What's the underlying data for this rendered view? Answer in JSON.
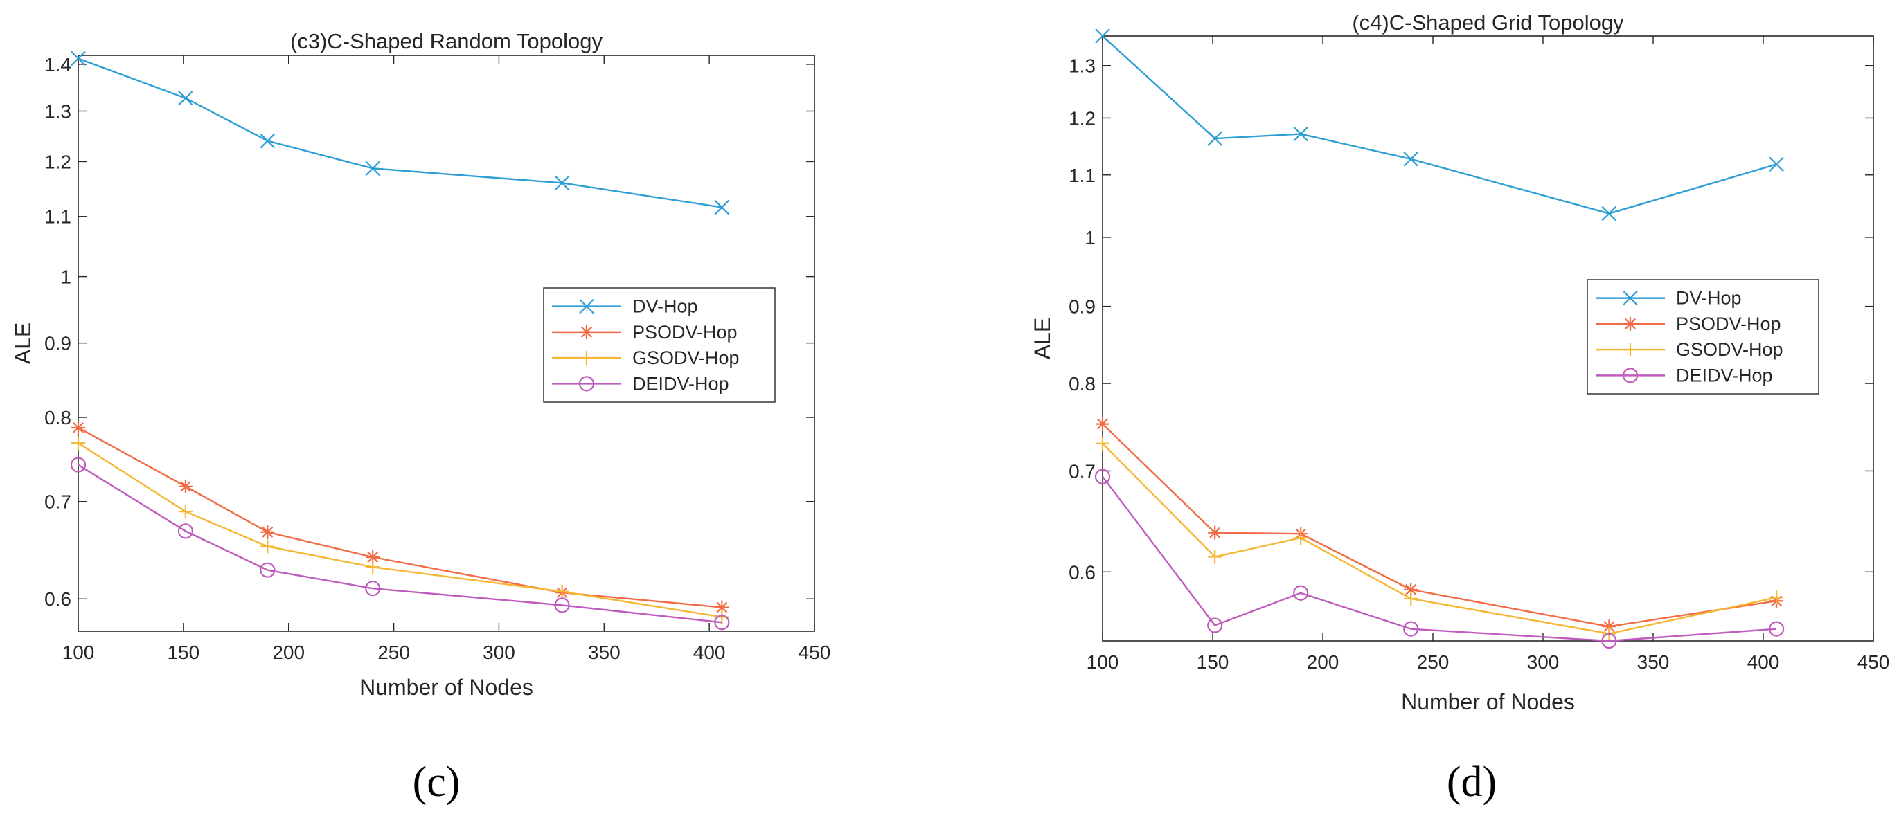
{
  "chart_data": [
    {
      "type": "line",
      "title": "(c3)C-Shaped Random Topology",
      "xlabel": "Number of Nodes",
      "ylabel": "ALE",
      "panel_label": "(c)",
      "y_scale": "log",
      "xlim": [
        100,
        450
      ],
      "ylim": [
        0.57,
        1.42
      ],
      "xticks": [
        100,
        150,
        200,
        250,
        300,
        350,
        400,
        450
      ],
      "yticks": [
        0.6,
        0.7,
        0.8,
        0.9,
        1.0,
        1.1,
        1.2,
        1.3,
        1.4
      ],
      "ytick_labels": [
        "0.6",
        "0.7",
        "0.8",
        "0.9",
        "1",
        "1.1",
        "1.2",
        "1.3",
        "1.4"
      ],
      "legend_position": "center-right",
      "x": [
        100,
        151,
        190,
        240,
        330,
        406
      ],
      "series": [
        {
          "name": "DV-Hop",
          "marker": "x",
          "color": "#2e9fd4",
          "values": [
            1.413,
            1.327,
            1.24,
            1.187,
            1.16,
            1.116
          ]
        },
        {
          "name": "PSODV-Hop",
          "marker": "asterisk",
          "color": "#f26b46",
          "values": [
            0.787,
            0.717,
            0.667,
            0.641,
            0.606,
            0.592
          ]
        },
        {
          "name": "GSODV-Hop",
          "marker": "plus",
          "color": "#f5b733",
          "values": [
            0.768,
            0.689,
            0.652,
            0.631,
            0.607,
            0.583
          ]
        },
        {
          "name": "DEIDV-Hop",
          "marker": "circle",
          "color": "#bf5bbd",
          "values": [
            0.742,
            0.668,
            0.628,
            0.61,
            0.594,
            0.578
          ]
        }
      ]
    },
    {
      "type": "line",
      "title": "(c4)C-Shaped Grid Topology",
      "xlabel": "Number of Nodes",
      "ylabel": "ALE",
      "panel_label": "(d)",
      "y_scale": "log",
      "xlim": [
        100,
        450
      ],
      "ylim": [
        0.54,
        1.36
      ],
      "xticks": [
        100,
        150,
        200,
        250,
        300,
        350,
        400,
        450
      ],
      "yticks": [
        0.6,
        0.7,
        0.8,
        0.9,
        1.0,
        1.1,
        1.2,
        1.3
      ],
      "ytick_labels": [
        "0.6",
        "0.7",
        "0.8",
        "0.9",
        "1",
        "1.1",
        "1.2",
        "1.3"
      ],
      "legend_position": "center-right",
      "x": [
        100,
        151,
        190,
        240,
        330,
        406
      ],
      "series": [
        {
          "name": "DV-Hop",
          "marker": "x",
          "color": "#2e9fd4",
          "values": [
            1.36,
            1.163,
            1.171,
            1.127,
            1.037,
            1.118
          ]
        },
        {
          "name": "PSODV-Hop",
          "marker": "asterisk",
          "color": "#f26b46",
          "values": [
            0.752,
            0.637,
            0.636,
            0.584,
            0.552,
            0.574
          ]
        },
        {
          "name": "GSODV-Hop",
          "marker": "plus",
          "color": "#f5b733",
          "values": [
            0.73,
            0.614,
            0.632,
            0.576,
            0.546,
            0.577
          ]
        },
        {
          "name": "DEIDV-Hop",
          "marker": "circle",
          "color": "#bf5bbd",
          "values": [
            0.694,
            0.553,
            0.581,
            0.55,
            0.54,
            0.55
          ]
        }
      ]
    }
  ]
}
